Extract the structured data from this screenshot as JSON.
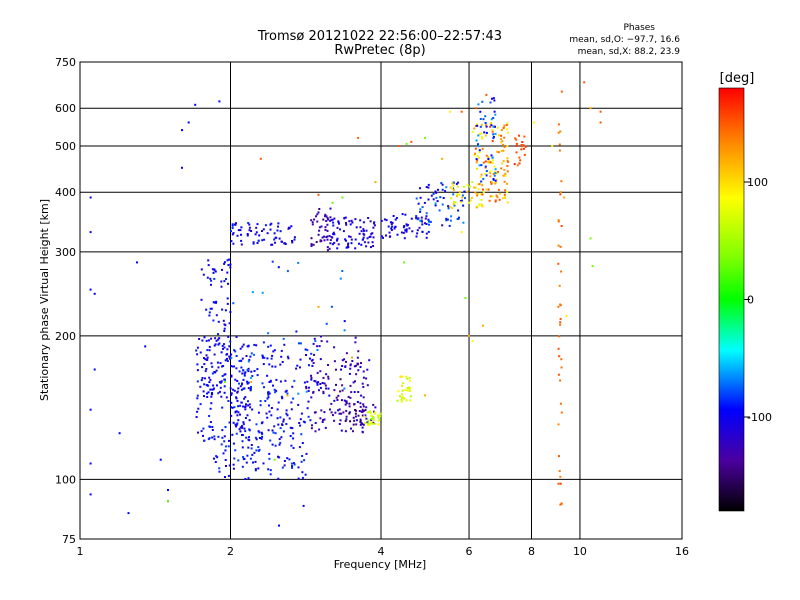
{
  "chart_data": {
    "type": "scatter",
    "title": "Tromsø 20121022 22:56:00–22:57:43",
    "subtitle": "RwPretec (8p)",
    "stats": {
      "header": "Phases",
      "line_o": "mean, sd,O: −97.7, 16.6",
      "line_x": "mean, sd,X:  88.2, 23.9"
    },
    "xlabel": "Frequency [MHz]",
    "ylabel": "Stationary phase Virtual Height [km]",
    "x_scale": "log",
    "y_scale": "log",
    "xlim": [
      1,
      16
    ],
    "ylim": [
      75,
      750
    ],
    "x_ticks": [
      1,
      2,
      4,
      6,
      8,
      10,
      16
    ],
    "y_ticks": [
      75,
      100,
      200,
      300,
      400,
      500,
      600,
      750
    ],
    "grid": true,
    "colorbar": {
      "label": "[deg]",
      "range": [
        -180,
        180
      ],
      "ticks": [
        100,
        0,
        -100
      ]
    },
    "series": [
      {
        "points": [
          [
            1.05,
            108
          ],
          [
            1.05,
            330
          ],
          [
            1.05,
            390
          ],
          [
            1.05,
            250
          ],
          [
            1.05,
            93
          ],
          [
            1.05,
            140
          ],
          [
            1.07,
            170
          ],
          [
            1.07,
            245
          ],
          [
            1.2,
            125
          ],
          [
            1.25,
            85
          ],
          [
            1.3,
            285
          ],
          [
            1.35,
            190
          ],
          [
            1.45,
            110
          ],
          [
            1.5,
            95
          ],
          [
            1.5,
            90
          ],
          [
            1.6,
            540
          ],
          [
            1.6,
            450
          ],
          [
            1.65,
            560
          ],
          [
            1.7,
            610
          ],
          [
            1.9,
            620
          ],
          [
            2.5,
            80
          ],
          [
            2.8,
            88
          ]
        ],
        "phase": -95
      },
      {
        "points": [
          [
            1.5,
            90
          ],
          [
            1.95,
            160
          ],
          [
            2.45,
            110
          ],
          [
            3.2,
            380
          ],
          [
            3.35,
            390
          ],
          [
            10.5,
            320
          ],
          [
            10.6,
            280
          ],
          [
            4.45,
            285
          ],
          [
            4.5,
            505
          ],
          [
            4.9,
            520
          ],
          [
            5.9,
            240
          ]
        ],
        "phase": 30
      },
      {
        "points": [
          [
            2.3,
            470
          ],
          [
            3.0,
            395
          ],
          [
            3.6,
            520
          ],
          [
            4.35,
            500
          ],
          [
            4.6,
            510
          ],
          [
            5.8,
            590
          ],
          [
            6.2,
            600
          ],
          [
            6.5,
            640
          ],
          [
            9.2,
            650
          ],
          [
            11,
            560
          ],
          [
            11,
            590
          ],
          [
            10.2,
            680
          ]
        ],
        "phase": 150
      },
      {
        "points": [
          [
            2.2,
            160
          ],
          [
            2.6,
            150
          ],
          [
            3.0,
            230
          ],
          [
            3.5,
            180
          ],
          [
            3.9,
            420
          ],
          [
            4.9,
            150
          ],
          [
            5.3,
            470
          ],
          [
            6.0,
            200
          ],
          [
            6.4,
            210
          ],
          [
            9.3,
            390
          ],
          [
            10.5,
            600
          ]
        ],
        "phase": 120
      },
      {
        "points": [
          [
            5.5,
            590
          ],
          [
            5.8,
            330
          ],
          [
            6.1,
            195
          ],
          [
            8.1,
            560
          ],
          [
            8.8,
            500
          ],
          [
            9.4,
            220
          ]
        ],
        "phase": 90
      }
    ],
    "clusters": [
      {
        "x": [
          1.85,
          2.85
        ],
        "y": [
          100,
          135
        ],
        "n": 140,
        "phase": [
          -110,
          -80
        ]
      },
      {
        "x": [
          1.7,
          2.2
        ],
        "y": [
          120,
          200
        ],
        "n": 160,
        "phase": [
          -115,
          -85
        ]
      },
      {
        "x": [
          1.75,
          2.0
        ],
        "y": [
          150,
          290
        ],
        "n": 90,
        "phase": [
          -110,
          -85
        ]
      },
      {
        "x": [
          2.0,
          2.9
        ],
        "y": [
          130,
          195
        ],
        "n": 140,
        "phase": [
          -110,
          -80
        ]
      },
      {
        "x": [
          2.9,
          3.8
        ],
        "y": [
          125,
          180
        ],
        "n": 120,
        "phase": [
          -145,
          -95
        ]
      },
      {
        "x": [
          3.3,
          3.9
        ],
        "y": [
          130,
          145
        ],
        "n": 40,
        "phase": [
          -155,
          -120
        ]
      },
      {
        "x": [
          3.7,
          4.0
        ],
        "y": [
          130,
          140
        ],
        "n": 30,
        "phase": [
          40,
          90
        ]
      },
      {
        "x": [
          4.3,
          4.6
        ],
        "y": [
          145,
          165
        ],
        "n": 30,
        "phase": [
          50,
          100
        ]
      },
      {
        "x": [
          2.0,
          2.7
        ],
        "y": [
          310,
          345
        ],
        "n": 70,
        "phase": [
          -115,
          -85
        ]
      },
      {
        "x": [
          2.9,
          3.2
        ],
        "y": [
          300,
          370
        ],
        "n": 50,
        "phase": [
          -150,
          -110
        ]
      },
      {
        "x": [
          3.2,
          3.9
        ],
        "y": [
          305,
          355
        ],
        "n": 80,
        "phase": [
          -125,
          -90
        ]
      },
      {
        "x": [
          4.0,
          5.0
        ],
        "y": [
          320,
          360
        ],
        "n": 60,
        "phase": [
          -120,
          -90
        ]
      },
      {
        "x": [
          4.7,
          5.9
        ],
        "y": [
          340,
          420
        ],
        "n": 70,
        "phase": [
          -115,
          -60
        ]
      },
      {
        "x": [
          5.5,
          6.4
        ],
        "y": [
          370,
          420
        ],
        "n": 40,
        "phase": [
          60,
          120
        ]
      },
      {
        "x": [
          6.1,
          7.2
        ],
        "y": [
          380,
          560
        ],
        "n": 120,
        "phase": [
          70,
          160
        ]
      },
      {
        "x": [
          6.2,
          6.8
        ],
        "y": [
          420,
          630
        ],
        "n": 50,
        "phase": [
          -110,
          -60
        ]
      },
      {
        "x": [
          7.4,
          7.8
        ],
        "y": [
          450,
          540
        ],
        "n": 20,
        "phase": [
          140,
          170
        ]
      },
      {
        "x": [
          9.05,
          9.2
        ],
        "y": [
          88,
          560
        ],
        "n": 40,
        "phase": [
          130,
          160
        ]
      },
      {
        "x": [
          1.9,
          3.5
        ],
        "y": [
          150,
          290
        ],
        "n": 30,
        "phase": [
          -95,
          -60
        ]
      },
      {
        "x": [
          2.8,
          3.7
        ],
        "y": [
          150,
          200
        ],
        "n": 30,
        "phase": [
          -140,
          -110
        ]
      }
    ]
  }
}
